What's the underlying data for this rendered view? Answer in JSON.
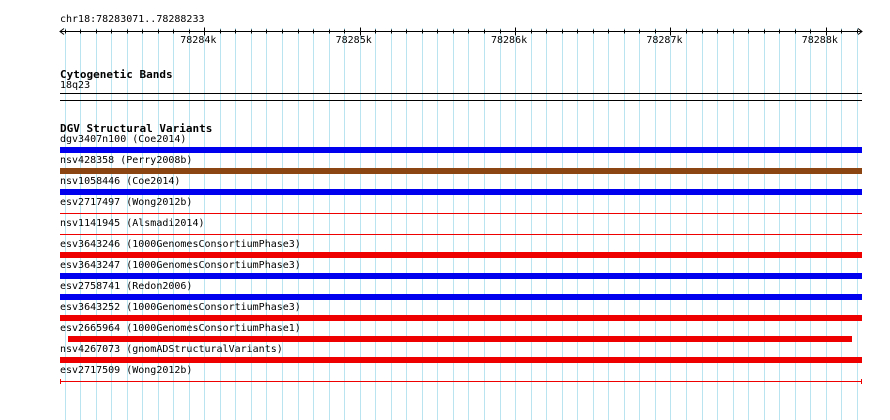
{
  "ruler": {
    "location": "chr18:78283071..78288233",
    "start": 78283071,
    "end": 78288233,
    "tick_labels": [
      "78284k",
      "78285k",
      "78286k",
      "78287k",
      "78288k"
    ],
    "tick_values": [
      78284000,
      78285000,
      78286000,
      78287000,
      78288000
    ]
  },
  "cytoband_track": {
    "title": "Cytogenetic Bands",
    "band": "18q23"
  },
  "dgv_track": {
    "title": "DGV Structural Variants",
    "features": [
      {
        "label": "dgv3407n100 (Coe2014)",
        "color": "#0000ee",
        "style": "thick"
      },
      {
        "label": "nsv428358 (Perry2008b)",
        "color": "#8b4513",
        "style": "thick"
      },
      {
        "label": "nsv1058446 (Coe2014)",
        "color": "#0000ee",
        "style": "thick"
      },
      {
        "label": "esv2717497 (Wong2012b)",
        "color": "#ee0000",
        "style": "thin"
      },
      {
        "label": "nsv1141945 (Alsmadi2014)",
        "color": "#ee0000",
        "style": "thin"
      },
      {
        "label": "esv3643246 (1000GenomesConsortiumPhase3)",
        "color": "#ee0000",
        "style": "thick"
      },
      {
        "label": "esv3643247 (1000GenomesConsortiumPhase3)",
        "color": "#0000ee",
        "style": "thick"
      },
      {
        "label": "esv2758741 (Redon2006)",
        "color": "#0000ee",
        "style": "thick"
      },
      {
        "label": "esv3643252 (1000GenomesConsortiumPhase3)",
        "color": "#ee0000",
        "style": "thick"
      },
      {
        "label": "esv2665964 (1000GenomesConsortiumPhase1)",
        "color": "#ee0000",
        "style": "partial",
        "end_fraction": 0.987
      },
      {
        "label": "nsv4267073 (gnomADStructuralVariants)",
        "color": "#ee0000",
        "style": "thick"
      },
      {
        "label": "esv2717509 (Wong2012b)",
        "color": "#ee0000",
        "style": "thin-capped"
      }
    ]
  },
  "colors": {
    "gridline": "#b9e4f0",
    "axis": "#000000"
  }
}
